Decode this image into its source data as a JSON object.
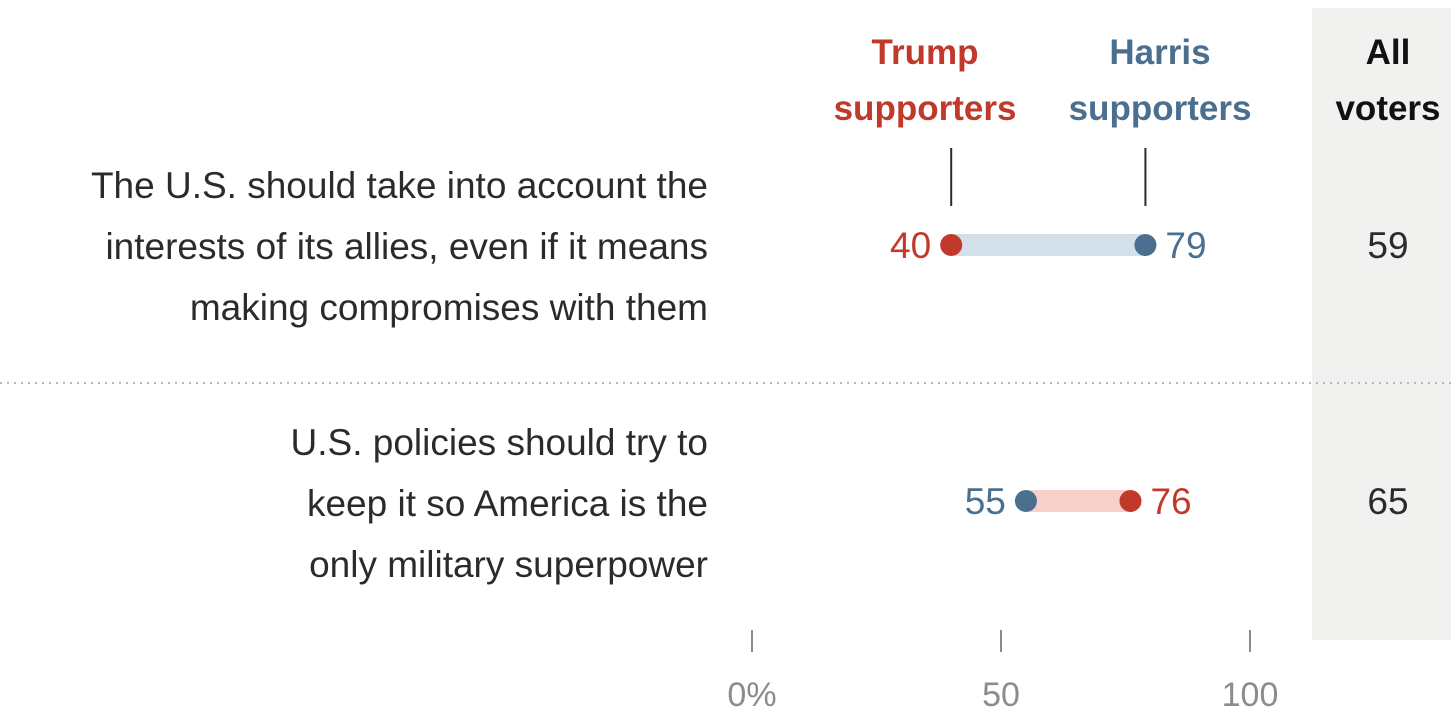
{
  "colors": {
    "trump": "#c0392b",
    "harris": "#4a6f8f",
    "harris_bar": "#d3dfe9",
    "trump_bar": "#f6d0cb",
    "all_voters_panel": "#f1f1ef",
    "text": "#2b2b2b",
    "axis": "#8c8c8c"
  },
  "chart_data": {
    "type": "dot-plot",
    "series_headers": {
      "trump": [
        "Trump",
        "supporters"
      ],
      "harris": [
        "Harris",
        "supporters"
      ],
      "all": [
        "All",
        "voters"
      ]
    },
    "rows": [
      {
        "label_lines": [
          "The U.S. should take into account the",
          "interests of its allies, even if it means",
          "making compromises with them"
        ],
        "trump": 40,
        "harris": 79,
        "trump_label": "40",
        "harris_label": "79",
        "all_voters": "59"
      },
      {
        "label_lines": [
          "U.S. policies should try to",
          "keep it so America is the",
          "only military superpower"
        ],
        "trump": 76,
        "harris": 55,
        "trump_label": "76",
        "harris_label": "55",
        "all_voters": "65"
      }
    ],
    "x_axis": {
      "min": 0,
      "max": 100,
      "ticks": [
        0,
        50,
        100
      ],
      "tick_labels": [
        "0%",
        "50",
        "100"
      ]
    }
  }
}
